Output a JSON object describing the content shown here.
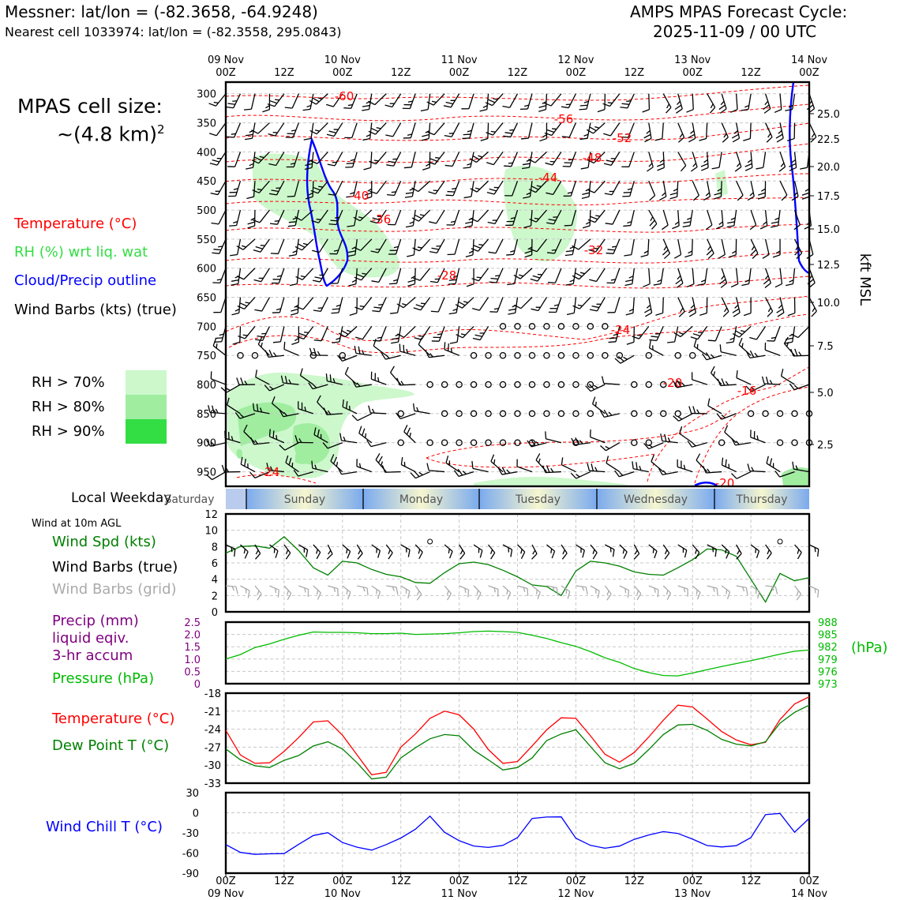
{
  "header": {
    "station_line": "Messner: lat/lon = (-82.3658, -64.9248)",
    "cell_line": "Nearest cell 1033974: lat/lon = (-82.3558, 295.0843)",
    "cycle_title": "AMPS MPAS Forecast Cycle:",
    "cycle_time": "2025-11-09 / 00 UTC"
  },
  "left_panel": {
    "cell_size_label": "MPAS cell size:",
    "cell_size_value": "~(4.8 km)",
    "cell_size_exp": "2",
    "legend": {
      "temperature": "Temperature (°C)",
      "rh": "RH (%) wrt liq. wat",
      "cloud": "Cloud/Precip outline",
      "wind_barbs": "Wind Barbs (kts) (true)"
    },
    "rh_levels": [
      {
        "label": "RH > 70%",
        "color": "#ccf8cc"
      },
      {
        "label": "RH > 80%",
        "color": "#a0eda0"
      },
      {
        "label": "RH > 90%",
        "color": "#33dd44"
      }
    ],
    "weekday_label": "Local Weekday",
    "wind_10m_label": "Wind at 10m AGL",
    "wind_spd_label": "Wind Spd (kts)",
    "wind_barbs_true_label": "Wind Barbs (true)",
    "wind_barbs_grid_label": "Wind Barbs (grid)",
    "precip_label_1": "Precip (mm)",
    "precip_label_2": "liquid eqiv.",
    "precip_label_3": "3-hr accum",
    "pressure_label": "Pressure (hPa)",
    "temp_label": "Temperature (°C)",
    "dewpoint_label": "Dew Point T (°C)",
    "windchill_label": "Wind Chill T (°C)"
  },
  "colors": {
    "temperature": "#ff0000",
    "rh": "#33dd44",
    "cloud": "#0000ff",
    "wind_speed": "#008000",
    "precip": "#800080",
    "pressure": "#00bb00",
    "dewpoint": "#008000",
    "windchill": "#0000ff",
    "grid_barbs": "#aaaaaa"
  },
  "time_axis": {
    "top_ticks": [
      "09 Nov\n00Z",
      "12Z",
      "10 Nov\n00Z",
      "12Z",
      "11 Nov\n00Z",
      "12Z",
      "12 Nov\n00Z",
      "12Z",
      "13 Nov\n00Z",
      "12Z",
      "14 Nov\n00Z"
    ],
    "bottom_ticks": [
      "00Z\n09 Nov",
      "12Z",
      "00Z\n10 Nov",
      "12Z",
      "00Z\n11 Nov",
      "12Z",
      "00Z\n12 Nov",
      "12Z",
      "00Z\n13 Nov",
      "12Z",
      "00Z\n14 Nov"
    ]
  },
  "weekdays": [
    "Saturday",
    "Sunday",
    "Monday",
    "Tuesday",
    "Wednesday",
    "Thursday"
  ],
  "chart_data": [
    {
      "type": "line",
      "name": "vertical cross-section",
      "x_label": "forecast hour",
      "x_range": [
        0,
        120
      ],
      "y_label": "Pressure (hPa)",
      "y_ticks": [
        300,
        350,
        400,
        450,
        500,
        550,
        600,
        650,
        700,
        750,
        800,
        850,
        900,
        950
      ],
      "y2_label": "kft MSL",
      "y2_ticks": [
        "25.0",
        "22.5",
        "20.0",
        "17.5",
        "15.0",
        "12.5",
        "10.0",
        "7.5",
        "5.0",
        "2.5"
      ],
      "temperature_contour_labels": [
        "-60",
        "-56",
        "-52",
        "-48",
        "-44",
        "-40",
        "-36",
        "-32",
        "-28",
        "-24",
        "-20",
        "-16",
        "-24",
        "-20"
      ]
    },
    {
      "type": "line",
      "name": "wind speed 10m",
      "ylim": [
        0,
        12
      ],
      "y_ticks": [
        "0",
        "2",
        "4",
        "6",
        "8",
        "10",
        "12"
      ],
      "x": [
        0,
        3,
        6,
        9,
        12,
        15,
        18,
        21,
        24,
        27,
        30,
        33,
        36,
        39,
        42,
        45,
        48,
        51,
        54,
        57,
        60,
        63,
        66,
        69,
        72,
        75,
        78,
        81,
        84,
        87,
        90,
        93,
        96,
        99,
        102,
        105,
        108,
        111,
        114,
        117,
        120
      ],
      "series": [
        {
          "name": "Wind Spd (kts)",
          "values": [
            7.2,
            8.0,
            8.1,
            7.8,
            9.2,
            7.5,
            5.4,
            4.5,
            6.2,
            6.0,
            5.2,
            4.6,
            4.3,
            3.6,
            3.5,
            4.8,
            5.9,
            6.1,
            5.8,
            5.1,
            4.3,
            3.3,
            3.1,
            2.0,
            5.0,
            6.2,
            6.0,
            5.6,
            4.9,
            4.6,
            4.5,
            5.4,
            6.4,
            7.7,
            7.6,
            6.8,
            4.0,
            1.2,
            4.7,
            3.8,
            4.2
          ]
        }
      ]
    },
    {
      "type": "line",
      "name": "precip and pressure",
      "y_ticks_left": [
        "0",
        "0.5",
        "1.0",
        "1.5",
        "2.0",
        "2.5"
      ],
      "y_ticks_right": [
        "973",
        "976",
        "979",
        "982",
        "985",
        "988"
      ],
      "y2_label": "(hPa)",
      "x": [
        0,
        3,
        6,
        9,
        12,
        15,
        18,
        21,
        24,
        27,
        30,
        33,
        36,
        39,
        42,
        45,
        48,
        51,
        54,
        57,
        60,
        63,
        66,
        69,
        72,
        75,
        78,
        81,
        84,
        87,
        90,
        93,
        96,
        99,
        102,
        105,
        108,
        111,
        114,
        117,
        120
      ],
      "series": [
        {
          "name": "Pressure (hPa)",
          "values": [
            979.0,
            980.1,
            981.8,
            982.7,
            983.8,
            984.8,
            985.6,
            985.5,
            985.5,
            985.4,
            985.2,
            985.2,
            985.3,
            985.0,
            985.1,
            985.2,
            985.4,
            985.7,
            985.8,
            985.7,
            985.5,
            984.8,
            984.0,
            983.0,
            982.1,
            980.8,
            979.3,
            978.2,
            976.7,
            975.7,
            975.0,
            974.9,
            975.6,
            976.4,
            977.2,
            977.9,
            978.6,
            979.4,
            980.2,
            980.9,
            981.2
          ]
        }
      ]
    },
    {
      "type": "line",
      "name": "temperature and dew point",
      "ylim": [
        -33,
        -18
      ],
      "y_ticks": [
        "-33",
        "-30",
        "-27",
        "-24",
        "-21",
        "-18"
      ],
      "x": [
        0,
        3,
        6,
        9,
        12,
        15,
        18,
        21,
        24,
        27,
        30,
        33,
        36,
        39,
        42,
        45,
        48,
        51,
        54,
        57,
        60,
        63,
        66,
        69,
        72,
        75,
        78,
        81,
        84,
        87,
        90,
        93,
        96,
        99,
        102,
        105,
        108,
        111,
        114,
        117,
        120
      ],
      "series": [
        {
          "name": "Temperature (°C)",
          "values": [
            -24.2,
            -28.3,
            -29.7,
            -29.6,
            -27.7,
            -25.4,
            -22.8,
            -22.6,
            -25.0,
            -28.3,
            -31.6,
            -31.2,
            -27.0,
            -24.8,
            -22.2,
            -21.0,
            -21.6,
            -24.0,
            -27.4,
            -29.7,
            -29.4,
            -26.8,
            -24.1,
            -22.1,
            -22.2,
            -25.1,
            -28.2,
            -29.5,
            -27.9,
            -25.3,
            -22.5,
            -20.0,
            -20.3,
            -22.3,
            -24.4,
            -25.8,
            -26.6,
            -26.2,
            -22.4,
            -19.8,
            -18.6
          ],
          "extra_tail": [
            -20.0,
            -21.9
          ]
        },
        {
          "name": "Dew Point T (°C)",
          "values": [
            -27.3,
            -29.1,
            -30.1,
            -30.4,
            -29.2,
            -28.4,
            -26.8,
            -26.1,
            -27.3,
            -29.6,
            -32.3,
            -32.0,
            -28.8,
            -27.1,
            -25.6,
            -24.9,
            -25.1,
            -27.5,
            -29.1,
            -30.8,
            -30.4,
            -28.8,
            -25.9,
            -24.8,
            -24.1,
            -26.9,
            -29.6,
            -30.6,
            -29.7,
            -27.4,
            -24.9,
            -23.3,
            -23.2,
            -24.2,
            -25.7,
            -26.5,
            -26.8,
            -26.1,
            -23.0,
            -21.2,
            -20.0
          ],
          "extra_tail": [
            -22.8,
            -25.0
          ]
        }
      ]
    },
    {
      "type": "line",
      "name": "wind chill",
      "ylim": [
        -90,
        30
      ],
      "y_ticks": [
        "-90",
        "-60",
        "-30",
        "0",
        "30"
      ],
      "x": [
        0,
        3,
        6,
        9,
        12,
        15,
        18,
        21,
        24,
        27,
        30,
        33,
        36,
        39,
        42,
        45,
        48,
        51,
        54,
        57,
        60,
        63,
        66,
        69,
        72,
        75,
        78,
        81,
        84,
        87,
        90,
        93,
        96,
        99,
        102,
        105,
        108,
        111,
        114,
        117,
        120
      ],
      "series": [
        {
          "name": "Wind Chill T (°C)",
          "values": [
            -47.4,
            -59.0,
            -62.0,
            -61.2,
            -60.8,
            -46.9,
            -33.9,
            -29.7,
            -44.3,
            -51.3,
            -55.6,
            -47.4,
            -37.6,
            -24.5,
            -5.1,
            -29.0,
            -41.7,
            -49.5,
            -51.7,
            -48.6,
            -37.1,
            -8.5,
            -6.4,
            -6.1,
            -37.9,
            -48.6,
            -52.8,
            -49.6,
            -39.6,
            -33.1,
            -28.1,
            -30.8,
            -39.3,
            -48.8,
            -51.0,
            -49.1,
            -37.1,
            -2.8,
            -0.9,
            -28.9,
            -8.4
          ]
        }
      ]
    }
  ]
}
